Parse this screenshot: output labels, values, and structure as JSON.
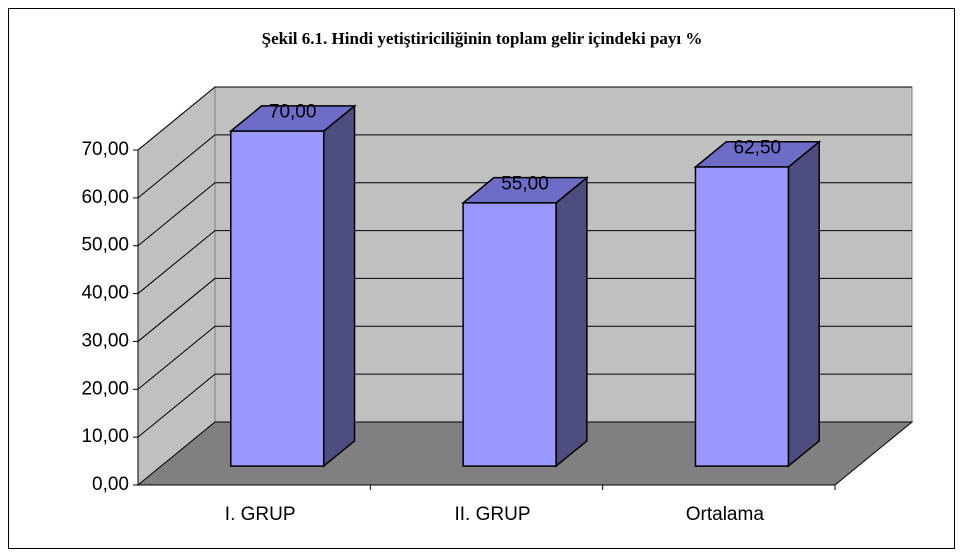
{
  "chart_data": {
    "type": "bar3d",
    "title": "Şekil 6.1. Hindi yetiştiriciliğinin toplam gelir içindeki payı %",
    "categories": [
      "I. GRUP",
      "II. GRUP",
      "Ortalama"
    ],
    "values": [
      70,
      55,
      62.5
    ],
    "value_labels": [
      "70,00",
      "55,00",
      "62,50"
    ],
    "color": "#9999ff",
    "ylim": [
      0,
      70
    ],
    "yticks": [
      {
        "value": 0,
        "label": "0,00"
      },
      {
        "value": 10,
        "label": "10,00"
      },
      {
        "value": 20,
        "label": "20,00"
      },
      {
        "value": 30,
        "label": "30,00"
      },
      {
        "value": 40,
        "label": "40,00"
      },
      {
        "value": 50,
        "label": "50,00"
      },
      {
        "value": 60,
        "label": "60,00"
      },
      {
        "value": 70,
        "label": "70,00"
      }
    ],
    "grid": true
  }
}
